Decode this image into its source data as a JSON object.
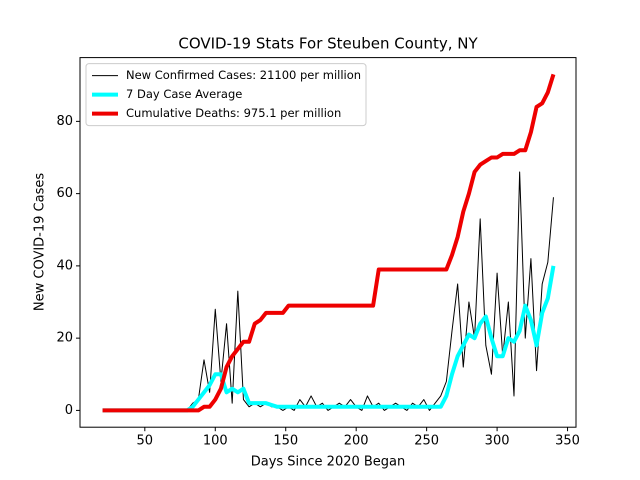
{
  "chart_data": {
    "type": "line",
    "title": "COVID-19 Stats For Steuben County, NY",
    "xlabel": "Days Since 2020 Began",
    "ylabel": "New COVID-19 Cases",
    "x": [
      20,
      24,
      28,
      32,
      36,
      40,
      44,
      48,
      52,
      56,
      60,
      64,
      68,
      72,
      76,
      80,
      84,
      88,
      92,
      96,
      100,
      104,
      108,
      112,
      116,
      120,
      124,
      128,
      132,
      136,
      140,
      144,
      148,
      152,
      156,
      160,
      164,
      168,
      172,
      176,
      180,
      184,
      188,
      192,
      196,
      200,
      204,
      208,
      212,
      216,
      220,
      224,
      228,
      232,
      236,
      240,
      244,
      248,
      252,
      256,
      260,
      264,
      268,
      272,
      276,
      280,
      284,
      288,
      292,
      296,
      300,
      304,
      308,
      312,
      316,
      320,
      324,
      328,
      332,
      336,
      340
    ],
    "series": [
      {
        "name": "New Confirmed Cases: 21100 per million",
        "color": "#000000",
        "linewidth": 1,
        "values": [
          0,
          0,
          0,
          0,
          0,
          0,
          0,
          0,
          0,
          0,
          0,
          0,
          0,
          0,
          0,
          0,
          2,
          3,
          14,
          5,
          28,
          8,
          24,
          2,
          33,
          3,
          1,
          2,
          1,
          2,
          1,
          1,
          0,
          1,
          0,
          3,
          1,
          4,
          1,
          2,
          0,
          1,
          2,
          1,
          3,
          1,
          0,
          4,
          1,
          2,
          0,
          1,
          2,
          1,
          0,
          2,
          1,
          3,
          0,
          2,
          4,
          8,
          22,
          35,
          12,
          30,
          20,
          53,
          18,
          10,
          38,
          15,
          30,
          4,
          66,
          20,
          42,
          11,
          35,
          41,
          59
        ]
      },
      {
        "name": "7 Day Case Average",
        "color": "#00ffff",
        "linewidth": 4,
        "values": [
          0,
          0,
          0,
          0,
          0,
          0,
          0,
          0,
          0,
          0,
          0,
          0,
          0,
          0,
          0,
          0,
          1,
          3,
          5,
          7,
          10,
          10,
          5,
          6,
          5,
          6,
          2,
          2,
          2,
          2,
          1.5,
          1,
          1,
          1,
          1,
          1,
          1,
          1,
          1,
          1,
          1,
          1,
          1,
          1,
          1,
          1,
          1,
          1,
          1,
          1,
          1,
          1,
          1,
          1,
          1,
          1,
          1,
          1,
          1,
          1,
          1,
          4,
          10,
          15,
          18,
          21,
          20,
          24,
          26,
          20,
          15,
          15,
          20,
          19,
          22,
          29,
          25,
          18,
          27,
          31,
          40
        ]
      },
      {
        "name": "Cumulative Deaths: 975.1 per million",
        "color": "#ee0000",
        "linewidth": 4,
        "values": [
          0,
          0,
          0,
          0,
          0,
          0,
          0,
          0,
          0,
          0,
          0,
          0,
          0,
          0,
          0,
          0,
          0,
          0,
          1,
          1,
          3,
          6,
          12,
          15,
          17,
          19,
          19,
          24,
          25,
          27,
          27,
          27,
          27,
          29,
          29,
          29,
          29,
          29,
          29,
          29,
          29,
          29,
          29,
          29,
          29,
          29,
          29,
          29,
          29,
          39,
          39,
          39,
          39,
          39,
          39,
          39,
          39,
          39,
          39,
          39,
          39,
          39,
          43,
          48,
          55,
          60,
          66,
          68,
          69,
          70,
          70,
          71,
          71,
          71,
          72,
          72,
          77,
          84,
          85,
          88,
          93
        ]
      }
    ],
    "xlim": [
      4,
      356
    ],
    "ylim": [
      -4.65,
      97.65
    ],
    "xticks": [
      50,
      100,
      150,
      200,
      250,
      300,
      350
    ],
    "yticks": [
      0,
      20,
      40,
      60,
      80
    ],
    "legend": "upper left"
  }
}
